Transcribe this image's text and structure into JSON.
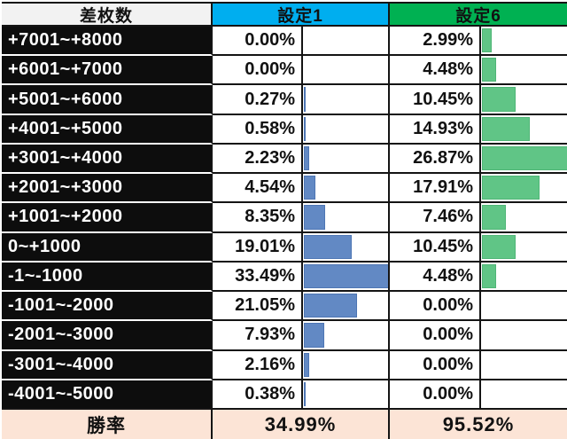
{
  "table": {
    "header": {
      "difference": "差枚数",
      "setting1": "設定1",
      "setting6": "設定6"
    },
    "footer": {
      "label": "勝率",
      "setting1_value": "34.99%",
      "setting6_value": "95.52%"
    }
  },
  "colors": {
    "setting1_header_bg": "#00AEEF",
    "setting6_header_bg": "#00B152",
    "setting1_bar": "#6289C4",
    "setting1_bar_border": "#4E76B4",
    "setting6_bar": "#60C586",
    "setting6_bar_border": "#4FB576",
    "row_label_bg": "#0D0D0D",
    "difference_header_bg": "#F2F2F2",
    "footer_bg": "#FCE4D6",
    "grid_border": "#141414"
  },
  "chart_data": {
    "type": "bar",
    "orientation": "horizontal",
    "value_format": "percent",
    "categories": [
      "+7001~+8000",
      "+6001~+7000",
      "+5001~+6000",
      "+4001~+5000",
      "+3001~+4000",
      "+2001~+3000",
      "+1001~+2000",
      "0~+1000",
      "-1~-1000",
      "-1001~-2000",
      "-2001~-3000",
      "-3001~-4000",
      "-4001~-5000"
    ],
    "series": [
      {
        "name": "設定1",
        "values": [
          0.0,
          0.0,
          0.27,
          0.58,
          2.23,
          4.54,
          8.35,
          19.01,
          33.49,
          21.05,
          7.93,
          2.16,
          0.38
        ],
        "labels": [
          "0.00%",
          "0.00%",
          "0.27%",
          "0.58%",
          "2.23%",
          "4.54%",
          "8.35%",
          "19.01%",
          "33.49%",
          "21.05%",
          "7.93%",
          "2.16%",
          "0.38%"
        ]
      },
      {
        "name": "設定6",
        "values": [
          2.99,
          4.48,
          10.45,
          14.93,
          26.87,
          17.91,
          7.46,
          10.45,
          4.48,
          0.0,
          0.0,
          0.0,
          0.0
        ],
        "labels": [
          "2.99%",
          "4.48%",
          "10.45%",
          "14.93%",
          "26.87%",
          "17.91%",
          "7.46%",
          "10.45%",
          "4.48%",
          "0.00%",
          "0.00%",
          "0.00%",
          "0.00%"
        ]
      }
    ],
    "win_rates": {
      "setting1": 34.99,
      "setting6": 95.52
    },
    "layout": {
      "bars_scaled_to_series_max": true,
      "legend": "column-headers",
      "grid": "table-borders"
    }
  }
}
